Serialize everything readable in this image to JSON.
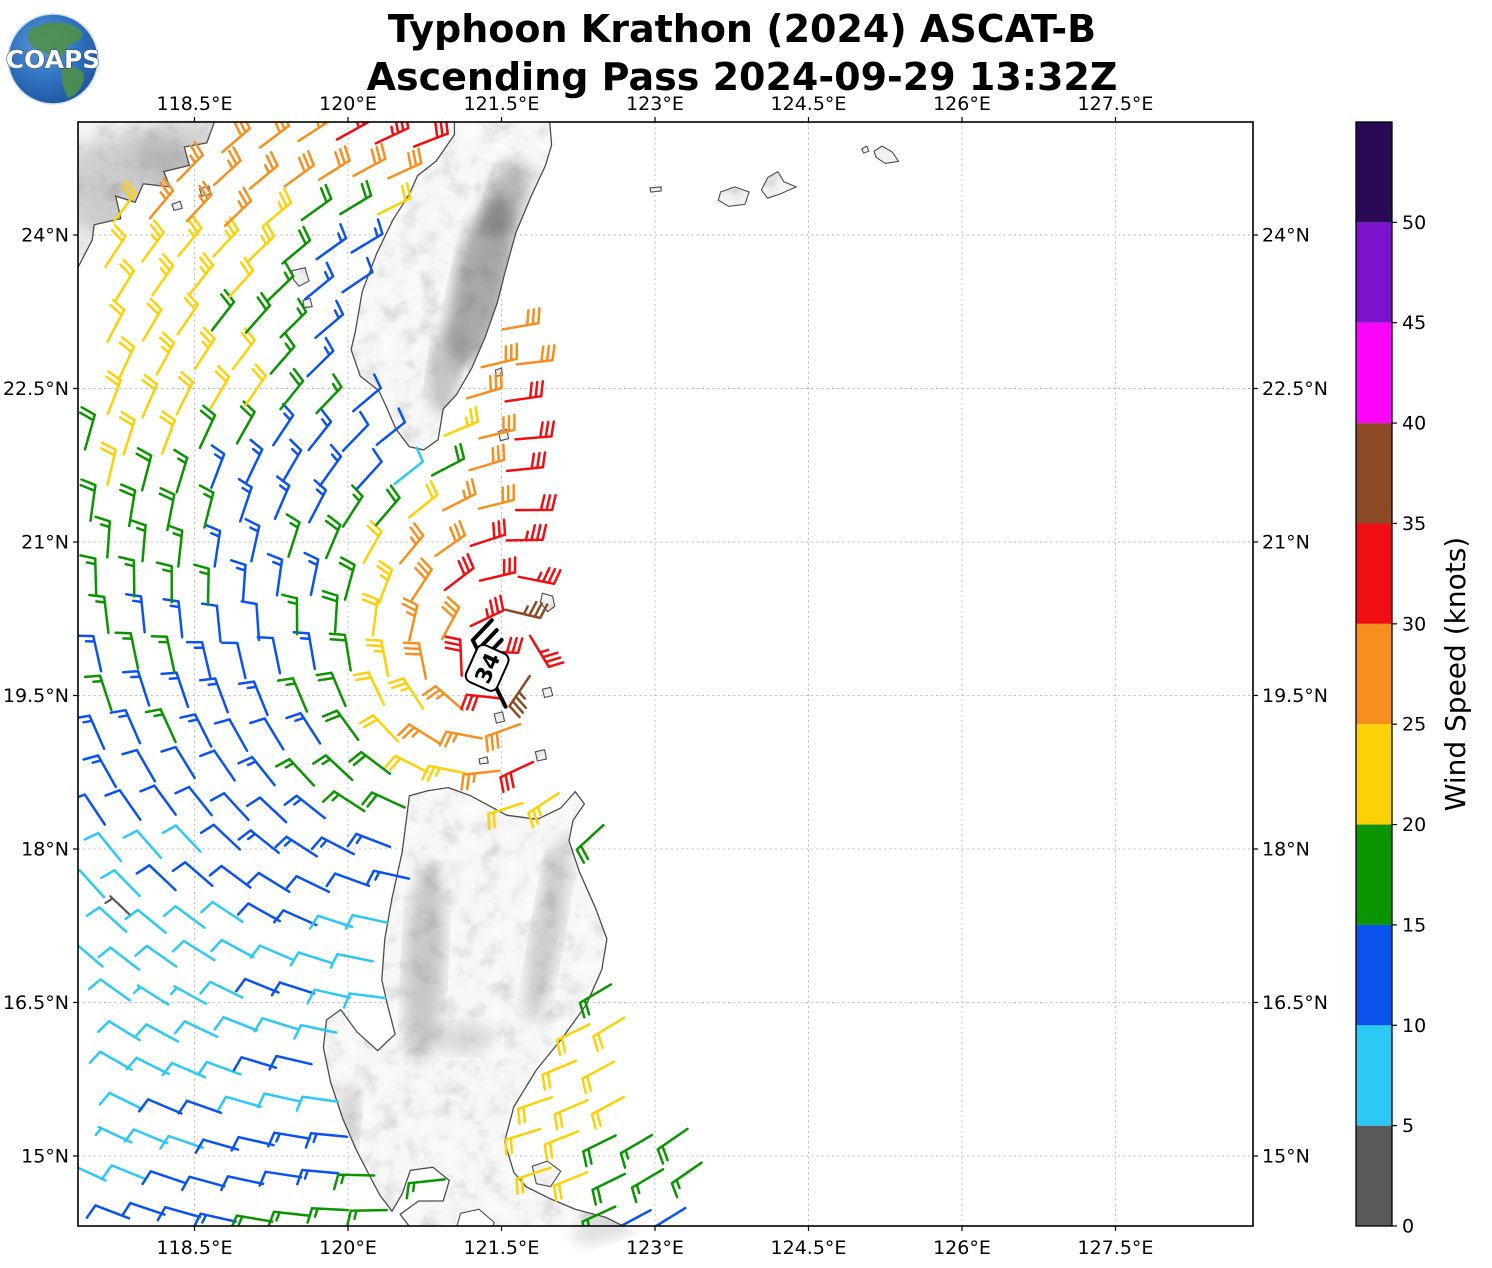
{
  "logo": {
    "text": "COAPS"
  },
  "title": {
    "line1": "Typhoon Krathon (2024) ASCAT-B",
    "line2": "Ascending Pass 2024-09-29 13:32Z"
  },
  "axes": {
    "x_ticks": [
      {
        "value": 118.5,
        "label": "118.5°E"
      },
      {
        "value": 120.0,
        "label": "120°E"
      },
      {
        "value": 121.5,
        "label": "121.5°E"
      },
      {
        "value": 123.0,
        "label": "123°E"
      },
      {
        "value": 124.5,
        "label": "124.5°E"
      },
      {
        "value": 126.0,
        "label": "126°E"
      },
      {
        "value": 127.5,
        "label": "127.5°E"
      }
    ],
    "y_ticks": [
      {
        "value": 24.0,
        "label": "24°N"
      },
      {
        "value": 22.5,
        "label": "22.5°N"
      },
      {
        "value": 21.0,
        "label": "21°N"
      },
      {
        "value": 19.5,
        "label": "19.5°N"
      },
      {
        "value": 18.0,
        "label": "18°N"
      },
      {
        "value": 16.5,
        "label": "16.5°N"
      },
      {
        "value": 15.0,
        "label": "15°N"
      }
    ]
  },
  "colorbar": {
    "label": "Wind Speed (knots)",
    "tick_values": [
      0,
      5,
      10,
      15,
      20,
      25,
      30,
      35,
      40,
      45,
      50
    ],
    "max_value": 55,
    "bins": [
      {
        "min": 0,
        "max": 5,
        "color": "#595959"
      },
      {
        "min": 5,
        "max": 10,
        "color": "#2bc9f4"
      },
      {
        "min": 10,
        "max": 15,
        "color": "#0a53ee"
      },
      {
        "min": 15,
        "max": 20,
        "color": "#0a9500"
      },
      {
        "min": 20,
        "max": 25,
        "color": "#fcd105"
      },
      {
        "min": 25,
        "max": 30,
        "color": "#f78f1e"
      },
      {
        "min": 30,
        "max": 35,
        "color": "#ef0f12"
      },
      {
        "min": 35,
        "max": 40,
        "color": "#8c4a24"
      },
      {
        "min": 40,
        "max": 45,
        "color": "#fb04fb"
      },
      {
        "min": 45,
        "max": 50,
        "color": "#7c12cc"
      },
      {
        "min": 50,
        "max": 55,
        "color": "#2a0a55"
      }
    ]
  },
  "center_marker": {
    "label": "34",
    "lon": 121.36,
    "lat": 19.77,
    "staff": [
      [
        121.22,
        20.04
      ],
      [
        121.54,
        19.39
      ]
    ],
    "rotation_deg": -66
  },
  "chart_data": {
    "type": "wind_barb_map",
    "title": "Typhoon Krathon (2024) ASCAT-B",
    "subtitle": "Ascending Pass 2024-09-29 13:32Z",
    "storm": "Typhoon Krathon (2024)",
    "satellite": "ASCAT-B",
    "pass": "Ascending",
    "datetime_utc": "2024-09-29 13:32Z",
    "max_wind_knots": 34,
    "lon_range": [
      117.36,
      128.84
    ],
    "lat_range": [
      14.32,
      25.1
    ],
    "vortex_center": {
      "lon": 121.45,
      "lat": 19.8
    },
    "inflow_factor": 0.25,
    "barb_grid_step_deg": 0.3635,
    "swath_max_lon_by_lat": [
      {
        "lat_min": 23.35,
        "max_lon": 121.3
      },
      {
        "lat_min": 18.8,
        "max_lon": 121.88
      },
      {
        "lat_min": 16.55,
        "max_lon": 122.45
      },
      {
        "lat_min": 15.5,
        "max_lon": 122.7
      },
      {
        "lat_min": -90,
        "max_lon": 123.35
      }
    ],
    "speed_grid": {
      "units": "knots",
      "lons": [
        117.6,
        118.35,
        119.1,
        119.85,
        120.6,
        121.35,
        122.1,
        122.85
      ],
      "lats": [
        24.75,
        24.0,
        23.25,
        22.5,
        21.75,
        21.0,
        20.25,
        19.5,
        18.75,
        18.0,
        17.25,
        16.5,
        15.75,
        15.0,
        14.25
      ],
      "values": [
        [
          22,
          26,
          28,
          31,
          32,
          29,
          28,
          28
        ],
        [
          20,
          25,
          26,
          13,
          13,
          12,
          26,
          26
        ],
        [
          21,
          23,
          18,
          12,
          10,
          24,
          28,
          28
        ],
        [
          21,
          22,
          21,
          16,
          8,
          30,
          32,
          32
        ],
        [
          21,
          18,
          14,
          12,
          9,
          29,
          33,
          33
        ],
        [
          16,
          17,
          13,
          17,
          26,
          31,
          33,
          33
        ],
        [
          16,
          14,
          12,
          16,
          27,
          33,
          37,
          35
        ],
        [
          15,
          16,
          12,
          17,
          24,
          32,
          37,
          35
        ],
        [
          13,
          12,
          13,
          15,
          22,
          27,
          31,
          31
        ],
        [
          9,
          9,
          12,
          13,
          15,
          20,
          14,
          20
        ],
        [
          8,
          9,
          11,
          9,
          10,
          14,
          12,
          18
        ],
        [
          7,
          8,
          10,
          8,
          9,
          15,
          20,
          21
        ],
        [
          7,
          10,
          11,
          8,
          12,
          21,
          21,
          22
        ],
        [
          6,
          10,
          11,
          15,
          14,
          21,
          21,
          18
        ],
        [
          12,
          14,
          16,
          16,
          18,
          22,
          19,
          14
        ]
      ]
    },
    "calm_barb": {
      "lon": 117.77,
      "lat": 17.45,
      "speed": 3
    }
  }
}
